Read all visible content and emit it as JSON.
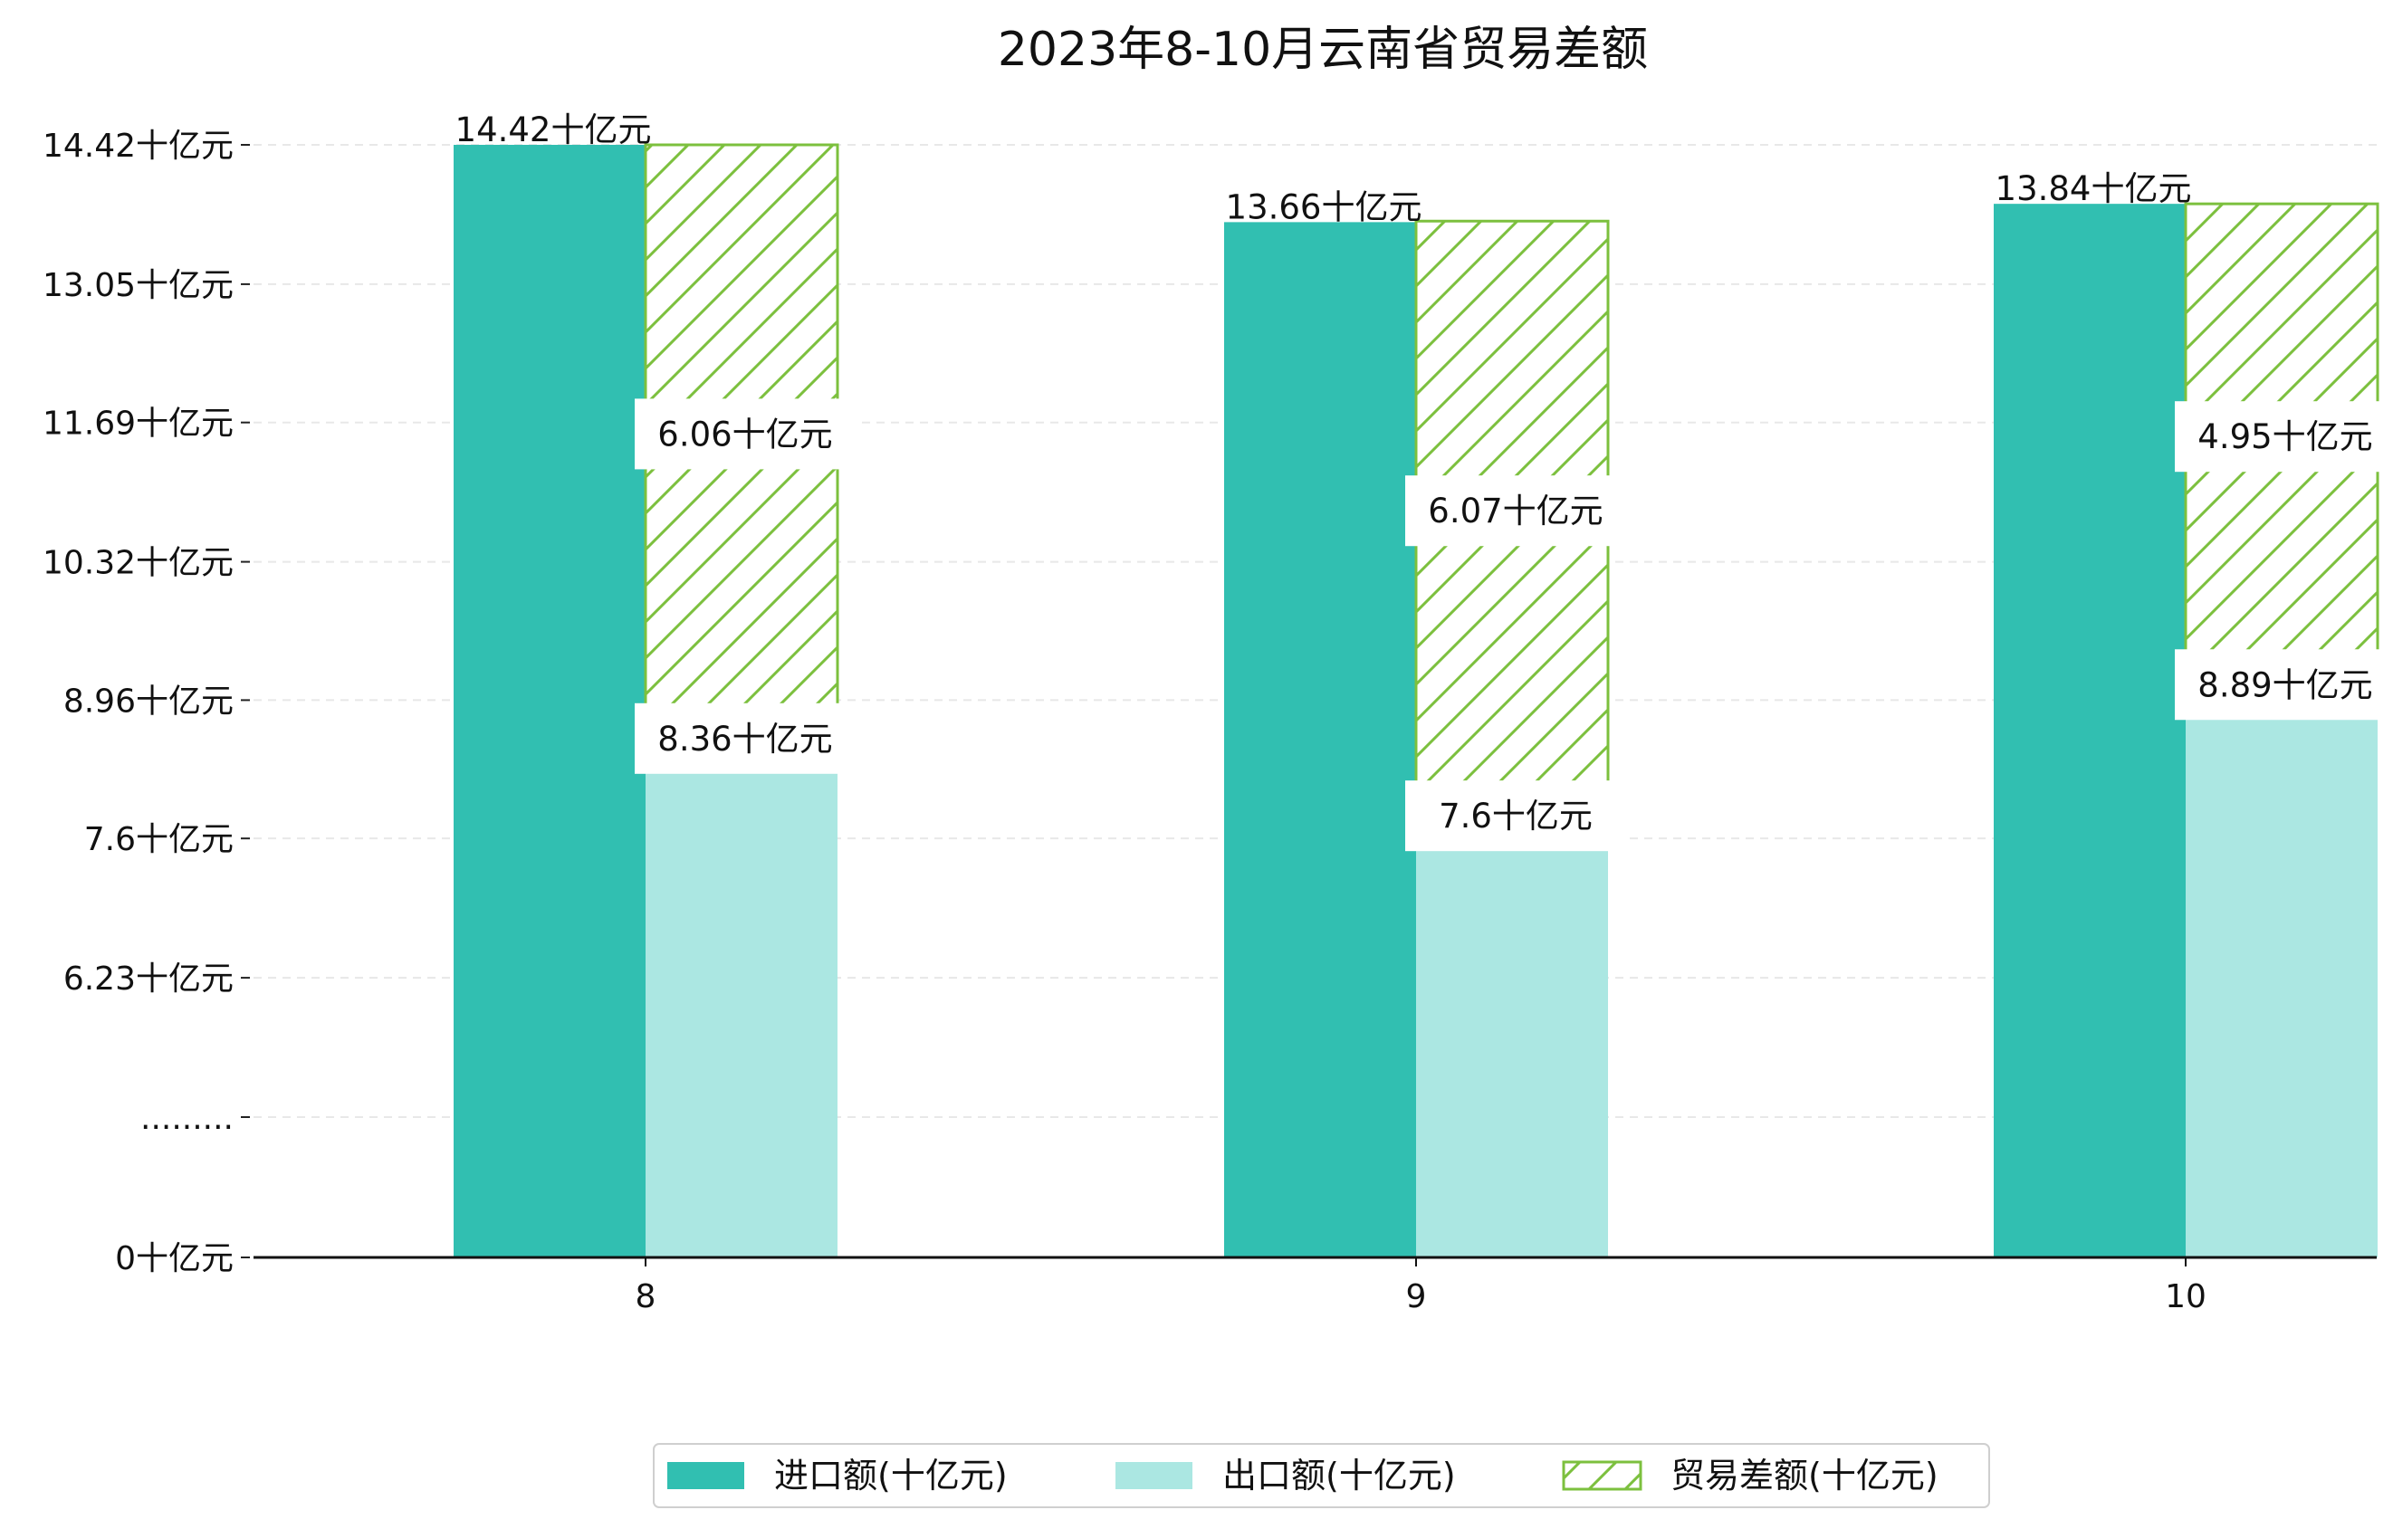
{
  "chart_data": {
    "type": "bar",
    "title": "2023年8-10月云南省贸易差额",
    "xlabel": "",
    "ylabel": "",
    "categories": [
      "8",
      "9",
      "10"
    ],
    "series": [
      {
        "name": "进口额(十亿元)",
        "values": [
          14.42,
          13.66,
          13.84
        ],
        "labels": [
          "14.42十亿元",
          "13.66十亿元",
          "13.84十亿元"
        ],
        "color": "#31bfb1",
        "fill": "solid"
      },
      {
        "name": "出口额(十亿元)",
        "values": [
          8.36,
          7.6,
          8.89
        ],
        "labels": [
          "8.36十亿元",
          "7.6十亿元",
          "8.89十亿元"
        ],
        "color": "#abe7e2",
        "fill": "solid"
      },
      {
        "name": "贸易差额(十亿元)",
        "values": [
          6.06,
          6.07,
          4.95
        ],
        "labels": [
          "6.06十亿元",
          "6.07十亿元",
          "4.95十亿元"
        ],
        "color": "#7cc03e",
        "fill": "hatched",
        "stacked_on": "出口额(十亿元)"
      }
    ],
    "y_ticks": [
      {
        "value": 0,
        "label": "0十亿元"
      },
      {
        "value": 4.86,
        "label": "........."
      },
      {
        "value": 6.23,
        "label": "6.23十亿元"
      },
      {
        "value": 7.6,
        "label": "7.6十亿元"
      },
      {
        "value": 8.96,
        "label": "8.96十亿元"
      },
      {
        "value": 10.32,
        "label": "10.32十亿元"
      },
      {
        "value": 11.69,
        "label": "11.69十亿元"
      },
      {
        "value": 13.05,
        "label": "13.05十亿元"
      },
      {
        "value": 14.42,
        "label": "14.42十亿元"
      }
    ],
    "axis_break": {
      "from": 0,
      "to": 4.86
    },
    "ylim": [
      0,
      14.42
    ],
    "grid": true,
    "legend_position": "bottom-center"
  }
}
